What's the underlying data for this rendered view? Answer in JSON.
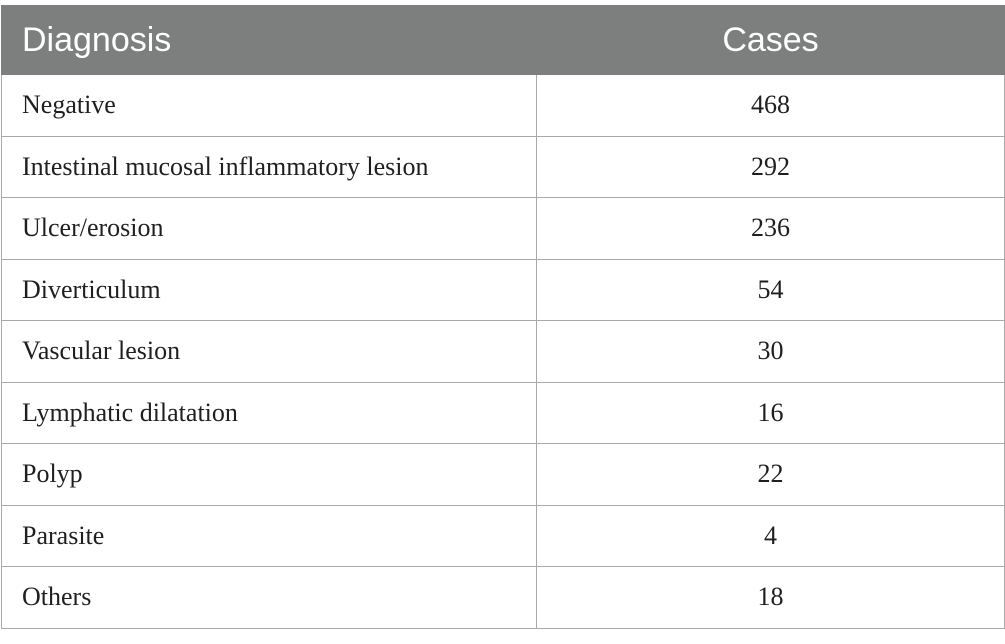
{
  "table": {
    "headers": [
      "Diagnosis",
      "Cases"
    ],
    "rows": [
      {
        "diagnosis": "Negative",
        "cases": "468"
      },
      {
        "diagnosis": "Intestinal mucosal inflammatory lesion",
        "cases": "292"
      },
      {
        "diagnosis": "Ulcer/erosion",
        "cases": "236"
      },
      {
        "diagnosis": "Diverticulum",
        "cases": "54"
      },
      {
        "diagnosis": "Vascular lesion",
        "cases": "30"
      },
      {
        "diagnosis": "Lymphatic dilatation",
        "cases": "16"
      },
      {
        "diagnosis": "Polyp",
        "cases": "22"
      },
      {
        "diagnosis": "Parasite",
        "cases": "4"
      },
      {
        "diagnosis": "Others",
        "cases": "18"
      }
    ]
  }
}
